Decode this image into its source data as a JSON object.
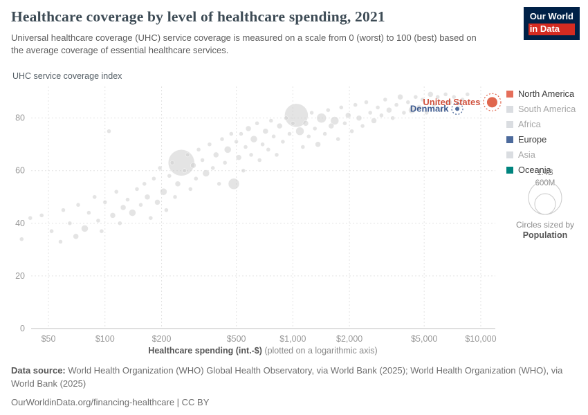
{
  "header": {
    "title": "Healthcare coverage by level of healthcare spending, 2021",
    "subtitle": "Universal healthcare coverage (UHC) service coverage is measured on a scale from 0 (worst) to 100 (best) based on the average coverage of essential healthcare services.",
    "logo": {
      "line1": "Our World",
      "line2": "in Data"
    }
  },
  "chart_data": {
    "type": "scatter",
    "title": "Healthcare coverage by level of healthcare spending, 2021",
    "x_axis": {
      "label": "Healthcare spending (int.-$)",
      "note": "(plotted on a logarithmic axis)",
      "scale": "log",
      "range": [
        40,
        13000
      ],
      "ticks": [
        50,
        100,
        200,
        500,
        1000,
        2000,
        5000,
        10000
      ],
      "tick_labels": [
        "$50",
        "$100",
        "$200",
        "$500",
        "$1,000",
        "$2,000",
        "$5,000",
        "$10,000"
      ]
    },
    "y_axis": {
      "label": "UHC service coverage index",
      "range": [
        0,
        92
      ],
      "ticks": [
        0,
        20,
        40,
        60,
        80
      ],
      "grid": true
    },
    "sized_by": "Population",
    "series": {
      "highlighted": [
        {
          "name": "United States",
          "continent": "North America",
          "x": 11500,
          "y": 86,
          "r": 8,
          "color": "#e0674e",
          "label_color": "#d0513d",
          "label_dy": 4
        },
        {
          "name": "Denmark",
          "continent": "Europe",
          "x": 7500,
          "y": 83.5,
          "r": 3.5,
          "color": "#4c6a9c",
          "label_color": "#3d5a8f",
          "label_dy": 4
        }
      ],
      "background_points": [
        [
          36,
          34,
          3
        ],
        [
          40,
          42,
          3
        ],
        [
          46,
          43,
          3
        ],
        [
          52,
          37,
          3
        ],
        [
          58,
          33,
          3
        ],
        [
          60,
          45,
          3
        ],
        [
          65,
          40,
          3
        ],
        [
          70,
          35,
          4
        ],
        [
          72,
          47,
          3
        ],
        [
          78,
          38,
          5
        ],
        [
          82,
          44,
          3
        ],
        [
          88,
          50,
          3
        ],
        [
          92,
          41,
          3
        ],
        [
          96,
          37,
          3
        ],
        [
          100,
          48,
          3
        ],
        [
          105,
          75,
          3
        ],
        [
          110,
          43,
          4
        ],
        [
          115,
          52,
          3
        ],
        [
          120,
          40,
          3
        ],
        [
          125,
          46,
          4
        ],
        [
          132,
          49,
          3
        ],
        [
          140,
          44,
          5
        ],
        [
          148,
          53,
          3
        ],
        [
          155,
          47,
          3
        ],
        [
          162,
          55,
          3
        ],
        [
          168,
          50,
          4
        ],
        [
          175,
          42,
          3
        ],
        [
          182,
          57,
          3
        ],
        [
          190,
          48,
          4
        ],
        [
          196,
          61,
          3
        ],
        [
          205,
          52,
          5
        ],
        [
          212,
          45,
          3
        ],
        [
          220,
          58,
          3
        ],
        [
          228,
          63,
          3
        ],
        [
          236,
          50,
          3
        ],
        [
          244,
          55,
          4
        ],
        [
          255,
          63,
          19
        ],
        [
          265,
          60,
          3
        ],
        [
          275,
          66,
          3
        ],
        [
          285,
          53,
          3
        ],
        [
          295,
          62,
          4
        ],
        [
          305,
          57,
          3
        ],
        [
          315,
          68,
          3
        ],
        [
          330,
          64,
          3
        ],
        [
          345,
          59,
          5
        ],
        [
          360,
          70,
          3
        ],
        [
          375,
          61,
          3
        ],
        [
          390,
          66,
          4
        ],
        [
          405,
          55,
          3
        ],
        [
          420,
          72,
          3
        ],
        [
          435,
          63,
          3
        ],
        [
          450,
          68,
          5
        ],
        [
          470,
          74,
          3
        ],
        [
          485,
          55,
          8
        ],
        [
          500,
          71,
          3
        ],
        [
          515,
          65,
          4
        ],
        [
          530,
          74,
          3
        ],
        [
          545,
          60,
          3
        ],
        [
          560,
          69,
          3
        ],
        [
          580,
          76,
          4
        ],
        [
          600,
          66,
          3
        ],
        [
          620,
          72,
          5
        ],
        [
          645,
          78,
          3
        ],
        [
          665,
          64,
          3
        ],
        [
          690,
          70,
          3
        ],
        [
          715,
          75,
          4
        ],
        [
          740,
          68,
          3
        ],
        [
          765,
          79,
          3
        ],
        [
          790,
          73,
          3
        ],
        [
          820,
          66,
          3
        ],
        [
          850,
          77,
          4
        ],
        [
          885,
          71,
          3
        ],
        [
          920,
          80,
          3
        ],
        [
          960,
          74,
          3
        ],
        [
          1000,
          78,
          3
        ],
        [
          1044,
          81,
          17
        ],
        [
          1090,
          75,
          6
        ],
        [
          1130,
          69,
          3
        ],
        [
          1170,
          78,
          4
        ],
        [
          1215,
          73,
          3
        ],
        [
          1260,
          82,
          3
        ],
        [
          1310,
          76,
          3
        ],
        [
          1360,
          70,
          4
        ],
        [
          1420,
          80,
          7
        ],
        [
          1480,
          74,
          3
        ],
        [
          1540,
          83,
          3
        ],
        [
          1600,
          77,
          4
        ],
        [
          1670,
          79,
          6
        ],
        [
          1740,
          72,
          3
        ],
        [
          1810,
          84,
          3
        ],
        [
          1890,
          78,
          3
        ],
        [
          1970,
          81,
          4
        ],
        [
          2060,
          75,
          3
        ],
        [
          2150,
          85,
          3
        ],
        [
          2250,
          80,
          4
        ],
        [
          2350,
          77,
          3
        ],
        [
          2460,
          86,
          3
        ],
        [
          2580,
          82,
          3
        ],
        [
          2700,
          79,
          4
        ],
        [
          2830,
          84,
          3
        ],
        [
          2960,
          81,
          3
        ],
        [
          3100,
          87,
          3
        ],
        [
          3250,
          83,
          4
        ],
        [
          3400,
          80,
          3
        ],
        [
          3560,
          85,
          3
        ],
        [
          3730,
          88,
          4
        ],
        [
          3900,
          82,
          3
        ],
        [
          4100,
          86,
          3
        ],
        [
          4300,
          83,
          5
        ],
        [
          4500,
          88,
          3
        ],
        [
          4700,
          84,
          4
        ],
        [
          4900,
          87,
          3
        ],
        [
          5150,
          82,
          3
        ],
        [
          5400,
          89,
          4
        ],
        [
          5650,
          85,
          3
        ],
        [
          5900,
          88,
          3
        ],
        [
          6200,
          83,
          3
        ],
        [
          6500,
          89,
          3
        ],
        [
          6800,
          86,
          4
        ],
        [
          7200,
          88,
          3
        ],
        [
          7600,
          84,
          3
        ],
        [
          8000,
          87,
          3
        ],
        [
          8500,
          89,
          3
        ]
      ]
    }
  },
  "legend": {
    "items": [
      {
        "label": "North America",
        "swatch": "#e56e5a",
        "text_color": "#3b3b3b",
        "muted": false
      },
      {
        "label": "South America",
        "swatch": "#dadde1",
        "text_color": "#a6a6a6",
        "muted": true
      },
      {
        "label": "Africa",
        "swatch": "#dadde1",
        "text_color": "#a6a6a6",
        "muted": true
      },
      {
        "label": "Europe",
        "swatch": "#4c6a9c",
        "text_color": "#3b3b3b",
        "muted": false
      },
      {
        "label": "Asia",
        "swatch": "#dadde1",
        "text_color": "#a6a6a6",
        "muted": true
      },
      {
        "label": "Oceania",
        "swatch": "#00847e",
        "text_color": "#3b3b3b",
        "muted": false
      }
    ]
  },
  "size_legend": {
    "large_label": "1.4B",
    "small_label": "600M",
    "caption": "Circles sized by",
    "caption_bold": "Population"
  },
  "footer": {
    "source_label": "Data source:",
    "source_text": " World Health Organization (WHO) Global Health Observatory, via World Bank (2025); World Health Organization (WHO), via World Bank (2025)",
    "link": "OurWorldinData.org/financing-healthcare",
    "license": " | CC BY"
  }
}
